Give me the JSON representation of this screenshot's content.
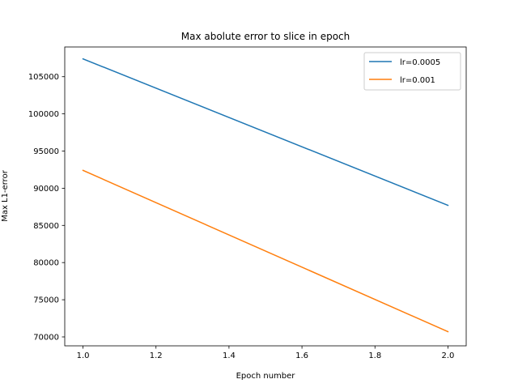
{
  "chart_data": {
    "type": "line",
    "title": "Max abolute error to slice in epoch",
    "xlabel": "Epoch number",
    "ylabel": "Max L1-error",
    "xlim": [
      0.95,
      2.05
    ],
    "ylim": [
      68800,
      109000
    ],
    "xticks": [
      1.0,
      1.2,
      1.4,
      1.6,
      1.8,
      2.0
    ],
    "xtick_labels": [
      "1.0",
      "1.2",
      "1.4",
      "1.6",
      "1.8",
      "2.0"
    ],
    "yticks": [
      70000,
      75000,
      80000,
      85000,
      90000,
      95000,
      100000,
      105000
    ],
    "ytick_labels": [
      "70000",
      "75000",
      "80000",
      "85000",
      "90000",
      "95000",
      "100000",
      "105000"
    ],
    "grid": false,
    "legend_position": "upper right",
    "series": [
      {
        "name": "lr=0.0005",
        "color": "#1f77b4",
        "x": [
          1.0,
          2.0
        ],
        "y": [
          107400,
          87700
        ]
      },
      {
        "name": "lr=0.001",
        "color": "#ff7f0e",
        "x": [
          1.0,
          2.0
        ],
        "y": [
          92400,
          70700
        ]
      }
    ]
  }
}
